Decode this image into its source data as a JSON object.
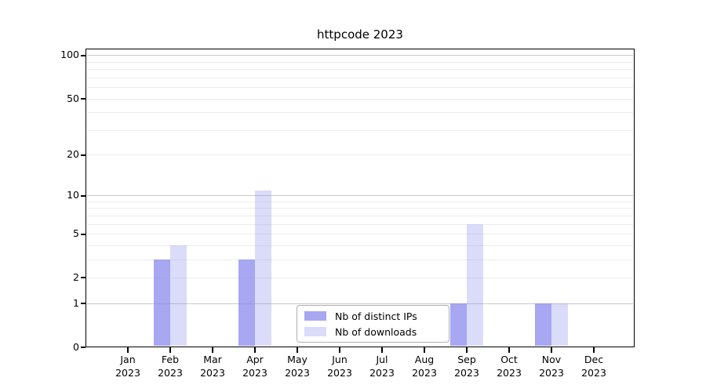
{
  "chart_data": {
    "type": "bar",
    "title": "httpcode 2023",
    "categories": [
      {
        "month": "Jan",
        "year": "2023"
      },
      {
        "month": "Feb",
        "year": "2023"
      },
      {
        "month": "Mar",
        "year": "2023"
      },
      {
        "month": "Apr",
        "year": "2023"
      },
      {
        "month": "May",
        "year": "2023"
      },
      {
        "month": "Jun",
        "year": "2023"
      },
      {
        "month": "Jul",
        "year": "2023"
      },
      {
        "month": "Aug",
        "year": "2023"
      },
      {
        "month": "Sep",
        "year": "2023"
      },
      {
        "month": "Oct",
        "year": "2023"
      },
      {
        "month": "Nov",
        "year": "2023"
      },
      {
        "month": "Dec",
        "year": "2023"
      }
    ],
    "series": [
      {
        "name": "Nb of distinct IPs",
        "color": "#8888ee",
        "opacity": 0.74,
        "values": [
          0,
          3,
          0,
          3,
          0,
          0,
          0,
          0,
          1,
          0,
          1,
          0
        ]
      },
      {
        "name": "Nb of downloads",
        "color": "#8888ee",
        "opacity": 0.3,
        "values": [
          0,
          4,
          0,
          11,
          0,
          0,
          0,
          0,
          6,
          0,
          1,
          0
        ]
      }
    ],
    "y_axis": {
      "scale": "log1p",
      "tick_values": [
        100,
        50,
        20,
        10,
        5,
        2,
        1,
        0
      ],
      "tick_labels": [
        "100",
        "50",
        "20",
        "10",
        "5",
        "2",
        "1",
        "0"
      ],
      "range": [
        0,
        113
      ]
    },
    "grid": true,
    "legend_position": "lower center"
  }
}
